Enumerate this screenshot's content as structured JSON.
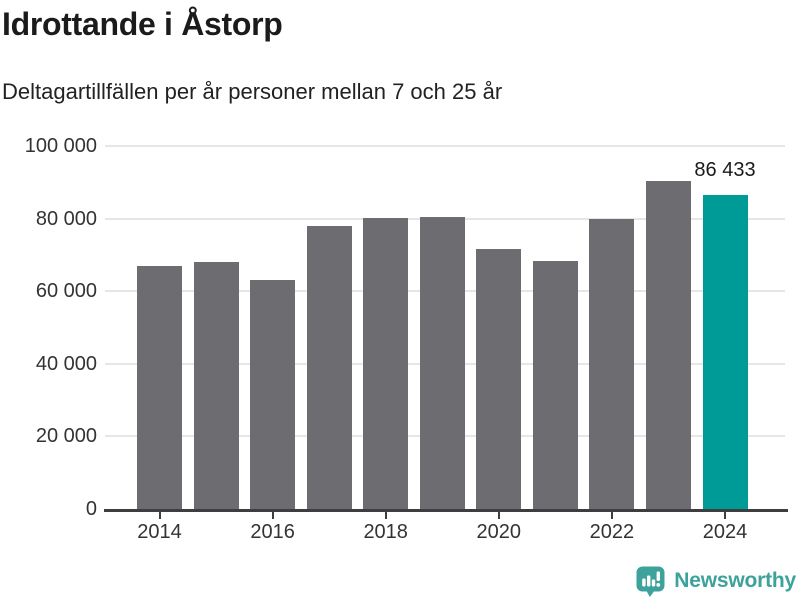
{
  "header": {
    "title": "Idrottande i Åstorp",
    "subtitle": "Deltagartillfällen per år personer mellan 7 och 25 år"
  },
  "chart_data": {
    "type": "bar",
    "title": "Idrottande i Åstorp",
    "subtitle": "Deltagartillfällen per år personer mellan 7 och 25 år",
    "categories": [
      "2014",
      "2015",
      "2016",
      "2017",
      "2018",
      "2019",
      "2020",
      "2021",
      "2022",
      "2023",
      "2024"
    ],
    "values": [
      66900,
      68100,
      63100,
      77900,
      80200,
      80500,
      71500,
      68400,
      79900,
      90400,
      86433
    ],
    "highlight": {
      "index": 10,
      "value_label": "86 433"
    },
    "xlabel": "",
    "ylabel": "",
    "ylim": [
      0,
      100000
    ],
    "yticks": [
      {
        "value": 0,
        "label": "0"
      },
      {
        "value": 20000,
        "label": "20 000"
      },
      {
        "value": 40000,
        "label": "40 000"
      },
      {
        "value": 60000,
        "label": "60 000"
      },
      {
        "value": 80000,
        "label": "80 000"
      },
      {
        "value": 100000,
        "label": "100 000"
      }
    ],
    "xticks": [
      "2014",
      "2016",
      "2018",
      "2020",
      "2022",
      "2024"
    ],
    "grid": true,
    "legend": "none",
    "colors": {
      "bar": "#6d6c70",
      "highlight": "#009b96",
      "gridline": "#e6e6e6",
      "axis_line": "#3e3e40",
      "axis_text": "#333333",
      "value_text": "#1a1a1a"
    }
  },
  "footer": {
    "brand": "Newsworthy",
    "logo_icon": "newsworthy-speech-bubble-bar-chart-icon",
    "brand_color": "#3da29c"
  }
}
